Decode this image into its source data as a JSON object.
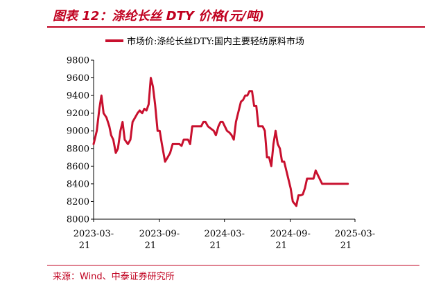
{
  "header": {
    "title": "图表 12：涤纶长丝 DTY 价格(元/吨)"
  },
  "footer": {
    "source": "来源：Wind、中泰证券研究所"
  },
  "colors": {
    "accent": "#c0001f",
    "series": "#c8102e"
  },
  "chart_data": {
    "type": "line",
    "title": "",
    "xlabel": "",
    "ylabel": "",
    "ylim": [
      8000,
      9800
    ],
    "yticks": [
      "8000",
      "8200",
      "8400",
      "8600",
      "8800",
      "9000",
      "9200",
      "9400",
      "9600",
      "9800"
    ],
    "xticks": [
      {
        "line1": "2023-03-",
        "line2": "21",
        "date": "2023-03-21"
      },
      {
        "line1": "2023-09-",
        "line2": "21",
        "date": "2023-09-21"
      },
      {
        "line1": "2024-03-",
        "line2": "21",
        "date": "2024-03-21"
      },
      {
        "line1": "2024-09-",
        "line2": "21",
        "date": "2024-09-21"
      },
      {
        "line1": "2025-03-",
        "line2": "21",
        "date": "2025-03-21"
      }
    ],
    "xlim": [
      "2023-03-21",
      "2025-03-21"
    ],
    "grid": false,
    "legend": "top",
    "series": [
      {
        "name": "市场价:涤纶长丝DTY:国内主要轻纺原料市场",
        "x": [
          "2023-03-21",
          "2023-03-30",
          "2023-04-06",
          "2023-04-12",
          "2023-04-18",
          "2023-04-26",
          "2023-05-04",
          "2023-05-09",
          "2023-05-15",
          "2023-05-22",
          "2023-05-28",
          "2023-06-04",
          "2023-06-10",
          "2023-06-16",
          "2023-06-25",
          "2023-07-02",
          "2023-07-08",
          "2023-07-15",
          "2023-07-22",
          "2023-07-28",
          "2023-08-04",
          "2023-08-10",
          "2023-08-16",
          "2023-08-22",
          "2023-08-28",
          "2023-09-03",
          "2023-09-09",
          "2023-09-16",
          "2023-09-22",
          "2023-09-28",
          "2023-10-07",
          "2023-10-14",
          "2023-10-21",
          "2023-10-28",
          "2023-11-04",
          "2023-11-10",
          "2023-11-16",
          "2023-11-22",
          "2023-11-28",
          "2023-12-04",
          "2023-12-10",
          "2023-12-16",
          "2023-12-22",
          "2023-12-28",
          "2024-01-04",
          "2024-01-10",
          "2024-01-16",
          "2024-01-22",
          "2024-01-28",
          "2024-02-04",
          "2024-02-20",
          "2024-02-26",
          "2024-03-04",
          "2024-03-10",
          "2024-03-16",
          "2024-03-22",
          "2024-03-28",
          "2024-04-04",
          "2024-04-10",
          "2024-04-16",
          "2024-04-22",
          "2024-04-28",
          "2024-05-06",
          "2024-05-12",
          "2024-05-18",
          "2024-05-24",
          "2024-05-30",
          "2024-06-06",
          "2024-06-12",
          "2024-06-18",
          "2024-06-24",
          "2024-06-30",
          "2024-07-06",
          "2024-07-12",
          "2024-07-18",
          "2024-07-24",
          "2024-07-30",
          "2024-08-05",
          "2024-08-11",
          "2024-08-17",
          "2024-08-23",
          "2024-08-29",
          "2024-09-04",
          "2024-09-10",
          "2024-09-16",
          "2024-09-22",
          "2024-09-28",
          "2024-10-08",
          "2024-10-14",
          "2024-10-20",
          "2024-10-26",
          "2024-11-01",
          "2024-11-07",
          "2024-11-13",
          "2024-11-19",
          "2024-11-25",
          "2024-12-01",
          "2024-12-07",
          "2024-12-13",
          "2024-12-19",
          "2024-12-25",
          "2024-12-31",
          "2025-01-06",
          "2025-01-12",
          "2025-01-18",
          "2025-02-05",
          "2025-02-11",
          "2025-02-17",
          "2025-02-23",
          "2025-03-01"
        ],
        "y": [
          8850,
          9000,
          9250,
          9400,
          9200,
          9150,
          9050,
          8950,
          8900,
          8750,
          8800,
          9000,
          9100,
          8900,
          8850,
          8900,
          9100,
          9150,
          9200,
          9230,
          9200,
          9250,
          9230,
          9300,
          9600,
          9500,
          9300,
          9000,
          9000,
          8850,
          8650,
          8700,
          8750,
          8850,
          8850,
          8850,
          8850,
          8830,
          8900,
          8900,
          8900,
          8850,
          9050,
          9050,
          9050,
          9050,
          9050,
          9100,
          9100,
          9050,
          9000,
          8950,
          9050,
          9100,
          9100,
          9050,
          9000,
          8980,
          8950,
          8900,
          9100,
          9200,
          9330,
          9350,
          9400,
          9400,
          9450,
          9450,
          9280,
          9280,
          9050,
          9050,
          9050,
          9000,
          8700,
          8700,
          8600,
          8850,
          9000,
          8850,
          8800,
          8650,
          8650,
          8550,
          8450,
          8350,
          8200,
          8150,
          8270,
          8270,
          8280,
          8350,
          8460,
          8460,
          8460,
          8460,
          8550,
          8500,
          8450,
          8400,
          8400,
          8400,
          8400,
          8400,
          8400,
          8400,
          8400,
          8400,
          8400,
          8400
        ]
      }
    ]
  }
}
